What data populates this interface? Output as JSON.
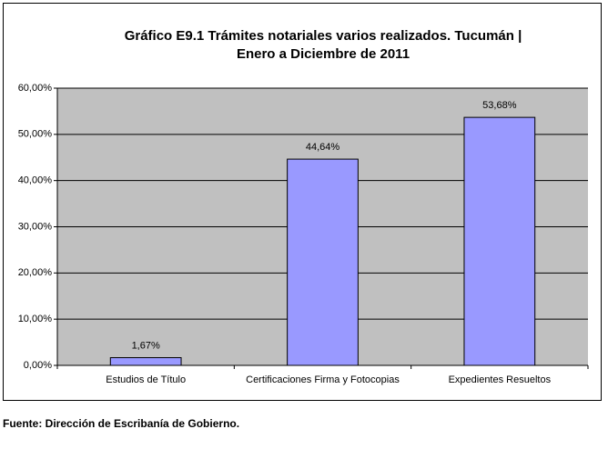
{
  "chart_data": {
    "type": "bar",
    "title": [
      "Gráfico E9.1 Trámites notariales varios realizados. Tucumán |",
      "Enero a Diciembre de 2011"
    ],
    "categories": [
      "Estudios de Título",
      "Certificaciones Firma y Fotocopias",
      "Expedientes Resueltos"
    ],
    "values": [
      1.67,
      44.64,
      53.68
    ],
    "value_labels": [
      "1,67%",
      "44,64%",
      "53,68%"
    ],
    "color": "#9999ff",
    "ylim": [
      0,
      60
    ],
    "yticks": [
      {
        "value": 0,
        "label": "0,00%"
      },
      {
        "value": 10,
        "label": "10,00%"
      },
      {
        "value": 20,
        "label": "20,00%"
      },
      {
        "value": 30,
        "label": "30,00%"
      },
      {
        "value": 40,
        "label": "40,00%"
      },
      {
        "value": 50,
        "label": "50,00%"
      },
      {
        "value": 60,
        "label": "60,00%"
      }
    ],
    "grid": true,
    "source": "Fuente: Dirección de Escribanía de Gobierno."
  }
}
